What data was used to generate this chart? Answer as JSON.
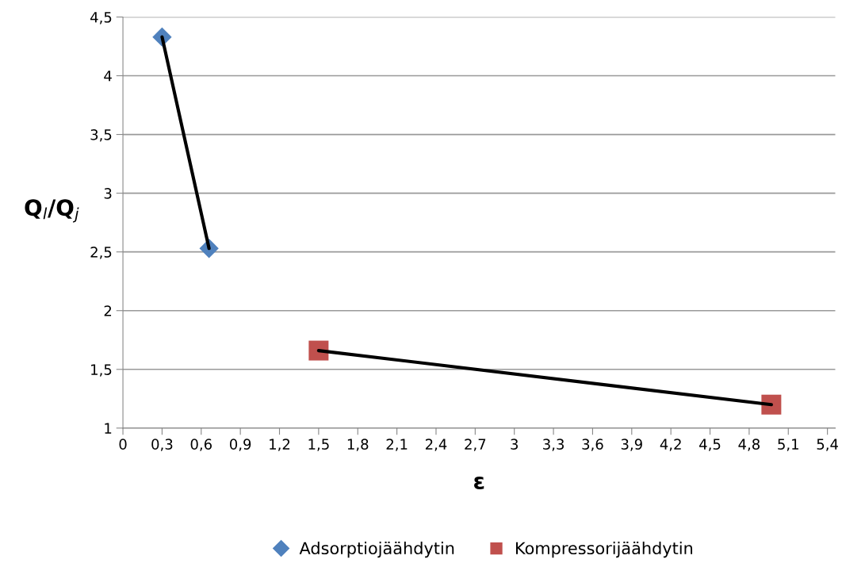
{
  "chart_data": {
    "type": "scatter",
    "xlabel": "ε",
    "ylabel": "Q$_{l}$/Q$_{j}$",
    "series": [
      {
        "type": "line",
        "color": "#000000",
        "x": [
          0.3,
          0.66
        ],
        "values": [
          4.33,
          2.53
        ],
        "marker": "none"
      },
      {
        "type": "line",
        "color": "#000000",
        "x": [
          1.5,
          4.97
        ],
        "values": [
          1.66,
          1.2
        ],
        "marker": "none"
      },
      {
        "name": "Adsorptiojäähdytin",
        "color": "#4f81bd",
        "marker": "diamond",
        "x": [
          0.3,
          0.66
        ],
        "values": [
          4.33,
          2.53
        ]
      },
      {
        "name": "Kompressorijäähdytin",
        "color": "#c0504d",
        "marker": "square",
        "x": [
          1.5,
          4.97
        ],
        "values": [
          1.66,
          1.2
        ]
      }
    ],
    "xlim": [
      0,
      5.46
    ],
    "xticks": [
      {
        "value": 0,
        "label": "0"
      },
      {
        "value": 0.3,
        "label": "0,3"
      },
      {
        "value": 0.6,
        "label": "0,6"
      },
      {
        "value": 0.9,
        "label": "0,9"
      },
      {
        "value": 1.2,
        "label": "1,2"
      },
      {
        "value": 1.5,
        "label": "1,5"
      },
      {
        "value": 1.8,
        "label": "1,8"
      },
      {
        "value": 2.1,
        "label": "2,1"
      },
      {
        "value": 2.4,
        "label": "2,4"
      },
      {
        "value": 2.7,
        "label": "2,7"
      },
      {
        "value": 3,
        "label": "3"
      },
      {
        "value": 3.3,
        "label": "3,3"
      },
      {
        "value": 3.6,
        "label": "3,6"
      },
      {
        "value": 3.9,
        "label": "3,9"
      },
      {
        "value": 4.2,
        "label": "4,2"
      },
      {
        "value": 4.5,
        "label": "4,5"
      },
      {
        "value": 4.8,
        "label": "4,8"
      },
      {
        "value": 5.1,
        "label": "5,1"
      },
      {
        "value": 5.4,
        "label": "5,4"
      }
    ],
    "ylim": [
      1,
      4.5
    ],
    "yticks": [
      {
        "value": 1,
        "label": "1"
      },
      {
        "value": 1.5,
        "label": "1,5"
      },
      {
        "value": 2,
        "label": "2"
      },
      {
        "value": 2.5,
        "label": "2,5"
      },
      {
        "value": 3,
        "label": "3"
      },
      {
        "value": 3.5,
        "label": "3,5"
      },
      {
        "value": 4,
        "label": "4"
      },
      {
        "value": 4.5,
        "label": "4,5"
      }
    ],
    "grid": "y",
    "legend": "bottom"
  }
}
